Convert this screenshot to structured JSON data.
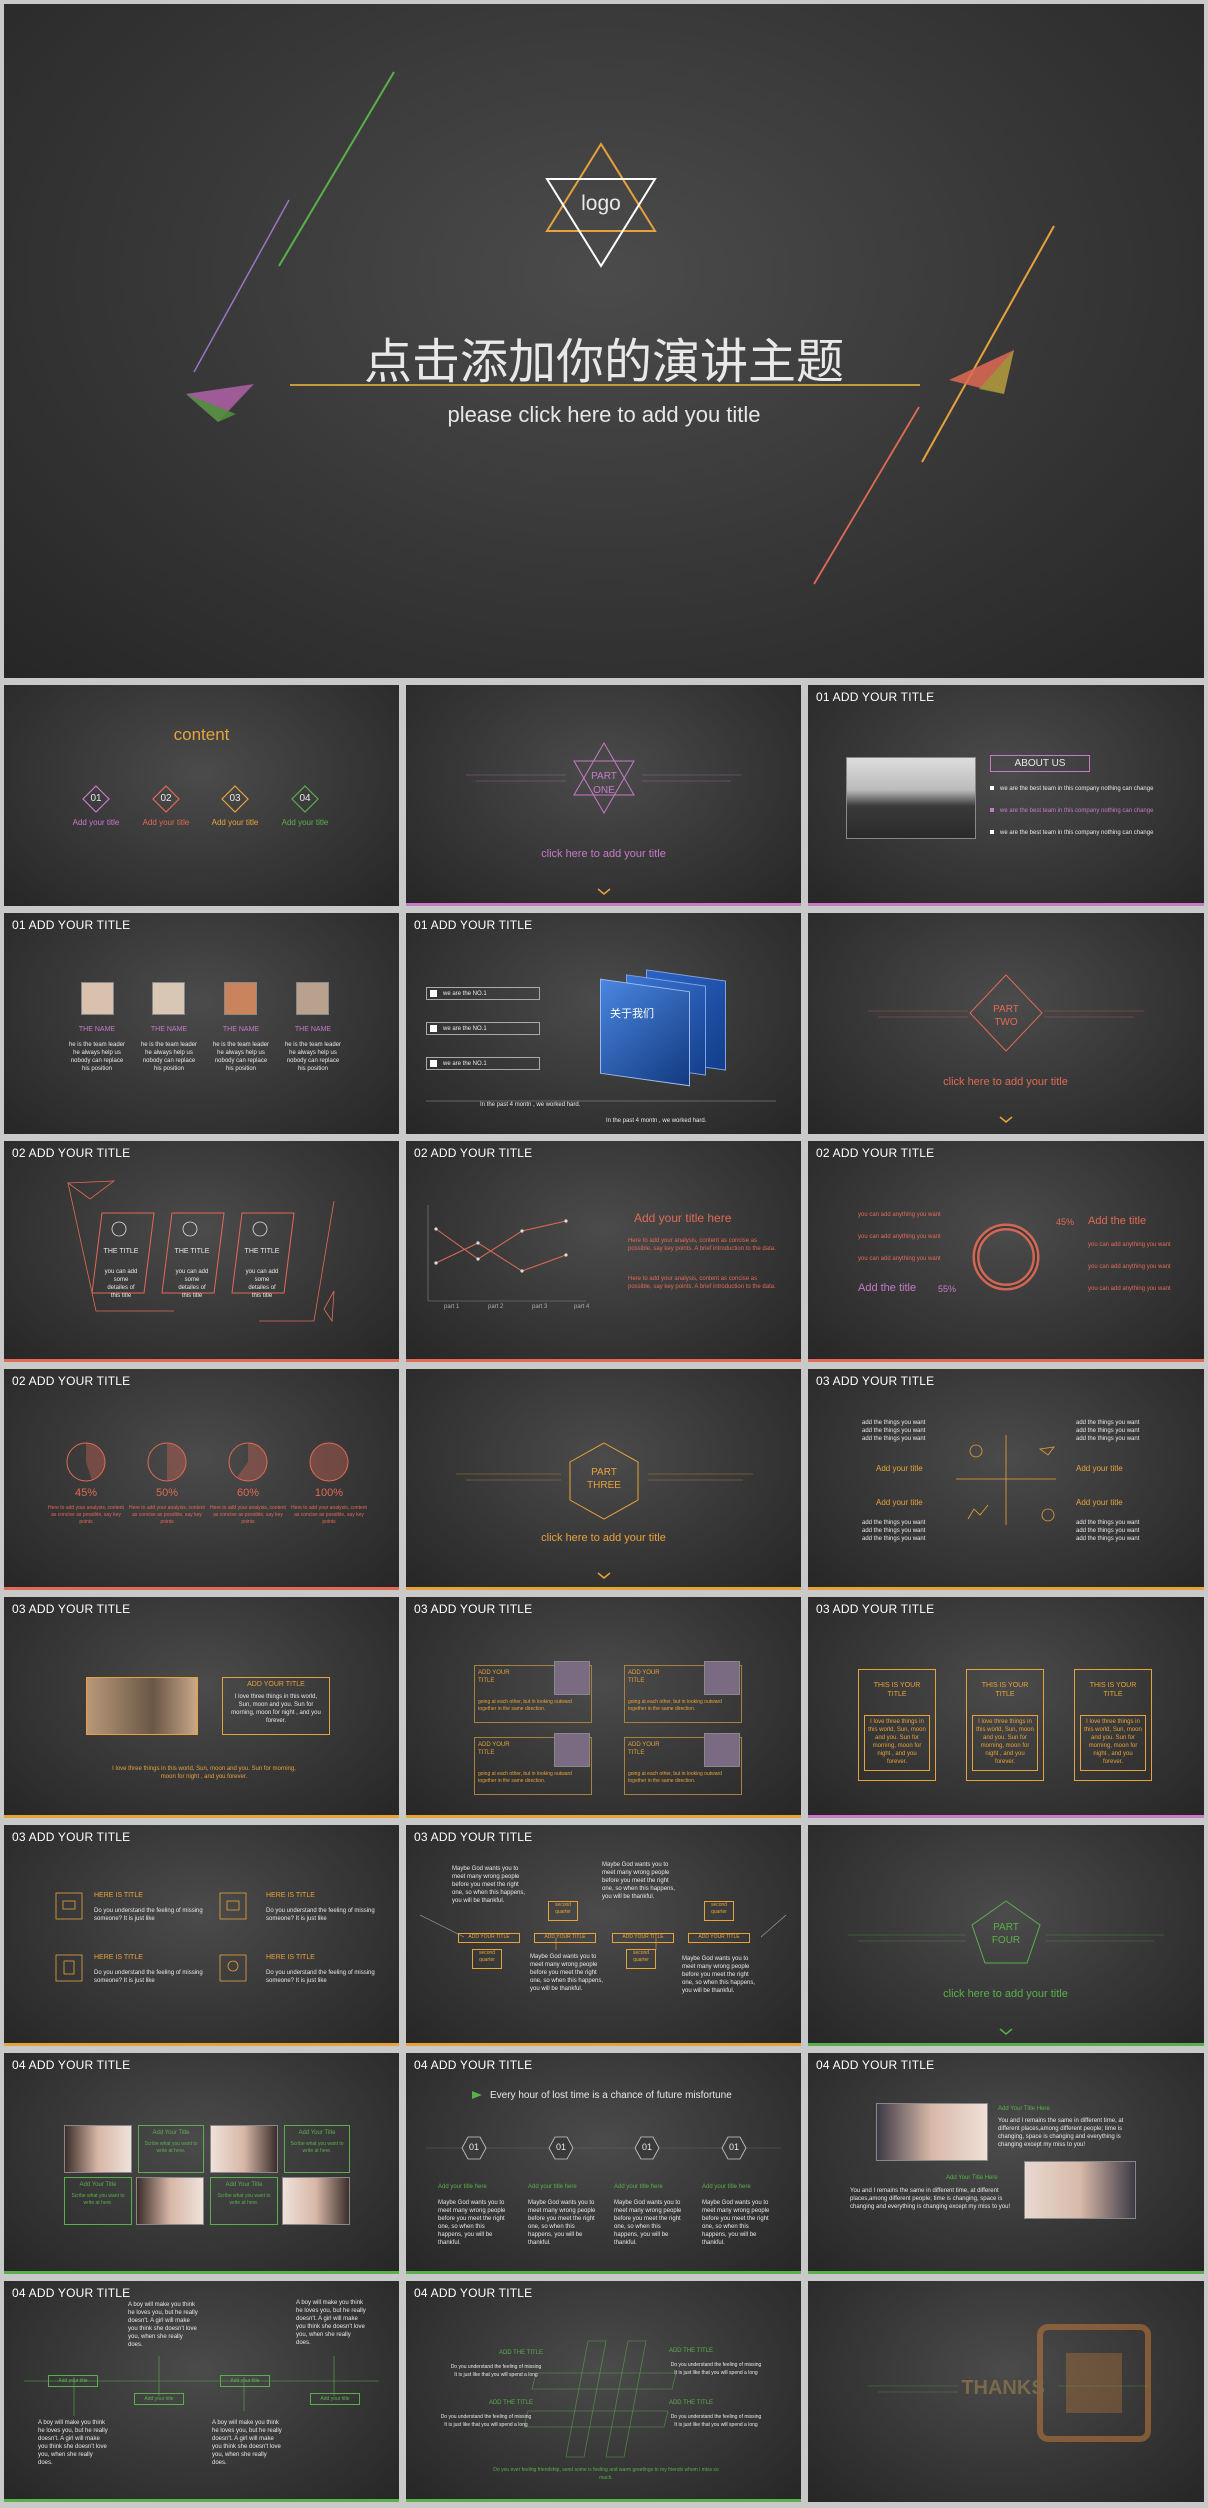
{
  "cover": {
    "logo": "logo",
    "title": "点击添加你的演讲主题",
    "subtitle": "please click here to add you title"
  },
  "headers": {
    "s1": "ADD  YOUR TITLE",
    "p01": "01",
    "p02": "02",
    "p03": "03",
    "p04": "04"
  },
  "content_slide": {
    "title": "content",
    "items": [
      {
        "num": "01",
        "label": "Add your title"
      },
      {
        "num": "02",
        "label": "Add your title"
      },
      {
        "num": "03",
        "label": "Add your title"
      },
      {
        "num": "04",
        "label": "Add your title"
      }
    ]
  },
  "part_one": {
    "part": "PART",
    "num": "ONE",
    "cta": "click here to add your title"
  },
  "part_two": {
    "part": "PART",
    "num": "TWO",
    "cta": "click here to add your title"
  },
  "part_three": {
    "part": "PART",
    "num": "THREE",
    "cta": "click here to add your title"
  },
  "part_four": {
    "part": "PART",
    "num": "FOUR",
    "cta": "click here to add your title"
  },
  "about": {
    "heading": "ABOUT US",
    "bullets": [
      "we are the best team in this company nothing can change",
      "we are the best team in this company nothing can change",
      "we are the best team in this company nothing can change"
    ]
  },
  "team": {
    "name": "THE NAME",
    "desc": "he is the team leader\nhe always help us\nnobody can replace\nhis position"
  },
  "no1": {
    "items": [
      "we are the NO.1",
      "we are the NO.1",
      "we are the NO.1"
    ],
    "badge": "关于我们",
    "line1": "In the past 4 montn , we worked  hard.",
    "line2": "In the past 4 montn , we worked  hard."
  },
  "three_cards": {
    "title": "THE TITLE",
    "text": "you can add\nsome\ndetailes of\nthis title"
  },
  "line_chart": {
    "title": "Add your title here",
    "para": "Here to add your analysis, content as concise as possible, say key points. A brief introduction to the data.",
    "ticks": [
      "part 1",
      "part 2",
      "part 3",
      "part 4"
    ]
  },
  "donut": {
    "left_lines": [
      "you can add anything you want",
      "you can add anything you want",
      "you can add anything you want"
    ],
    "left_title": "Add the title",
    "left_pct": "55%",
    "right_pct": "45%",
    "right_title": "Add the title",
    "right_lines": [
      "you can add anything you want",
      "you can add anything you want",
      "you can add anything you want"
    ]
  },
  "pies": {
    "items": [
      {
        "pct": "45%",
        "v": 0.45
      },
      {
        "pct": "50%",
        "v": 0.5
      },
      {
        "pct": "60%",
        "v": 0.6
      },
      {
        "pct": "100%",
        "v": 1.0
      }
    ],
    "text": "Here to add your analysis, content as concise as possible, say key points"
  },
  "quad": {
    "things": "add the things  you want\nadd the things  you want\nadd the things  you want",
    "title": "Add your title"
  },
  "photo_title": {
    "title": "ADD YOUR TITLE",
    "text": "I love three things in this world, Sun, moon and you. Sun for morning, moon for night , and you forever.",
    "caption": "I love three things in this world, Sun, moon and you. Sun for morning, moon for night , and you forever."
  },
  "four_cards": {
    "title": "ADD YOUR\nTITLE",
    "text": "going at each other, but in looking outward together in the same direction."
  },
  "three_cols": {
    "title": "THIS IS YOUR\nTITLE",
    "text": "I love three things in this world, Sun, moon and you. Sun for morning, moon for night , and you forever."
  },
  "here_title": {
    "title": "HERE IS TITLE",
    "text": "Do you understand the feeling of missing someone? It is just like"
  },
  "maybe": {
    "text": "Maybe God wants you to meet many wrong people before you meet the right one, so when this happens, you will be thankful.",
    "tag": "ADD YOUR TITLE",
    "quartet": "second\nquarter"
  },
  "girls": {
    "title": "Add Your Title",
    "text": "Scribe what you want to write at here."
  },
  "misfortune": {
    "headline": "Every hour of lost time is a chance of future misfortune",
    "num": "01",
    "title": "Add your title here",
    "text": "Maybe God wants you to meet many wrong people before you meet the right one, so when this happens, you will be thankful."
  },
  "kiss": {
    "title": "Add Your Title Here",
    "text": "You and I remains the same in different time, at different places,among different people; time is changing, space is changing and everything is changing except my miss to you!"
  },
  "boy": {
    "text": "A boy will make you think he loves you, but he really doesn't. A girl will make you think she doesn't love you, when she really does.",
    "tag": "Add your title"
  },
  "hash": {
    "title": "ADD THE TITLE",
    "text": "Do you understand the feeling of missing\nIt is just like that you will spend a long",
    "footer": "Do you ever feeling friendship, send some is feeling and warm greetings to my friends whom i miss so much."
  },
  "thanks": {
    "text": "THANKS"
  },
  "colors": {
    "orange": "#e8a23a",
    "red": "#e06a55",
    "pink": "#c87ac8",
    "green": "#59b04a",
    "purple": "#9a74c4"
  }
}
